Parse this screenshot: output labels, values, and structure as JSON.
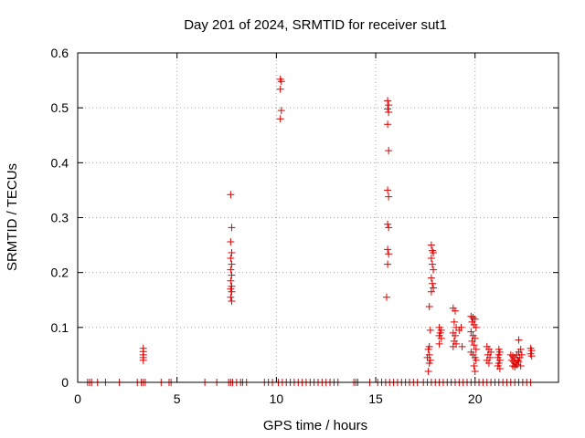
{
  "chart_data": {
    "type": "scatter",
    "title": "Day 201 of 2024, SRMTID for receiver sut1",
    "xlabel": "GPS time / hours",
    "ylabel": "SRMTID / TECUs",
    "xlim": [
      0,
      24.2
    ],
    "ylim": [
      0,
      0.6
    ],
    "xticks": [
      0,
      5,
      10,
      15,
      20
    ],
    "xtick_labels": [
      "0",
      "5",
      "10",
      "15",
      "20"
    ],
    "yticks": [
      0,
      0.1,
      0.2,
      0.3,
      0.4,
      0.5,
      0.6
    ],
    "ytick_labels": [
      "0",
      "0.1",
      "0.2",
      "0.3",
      "0.4",
      "0.5",
      "0.6"
    ],
    "grid": true,
    "marker": "plus",
    "color": "#e00000",
    "series": [
      {
        "name": "sut1",
        "points": [
          [
            0.5,
            0
          ],
          [
            0.6,
            0
          ],
          [
            0.7,
            0
          ],
          [
            1.0,
            0
          ],
          [
            1.4,
            0
          ],
          [
            2.1,
            0
          ],
          [
            3.0,
            0
          ],
          [
            3.2,
            0
          ],
          [
            3.3,
            0
          ],
          [
            3.4,
            0
          ],
          [
            4.2,
            0
          ],
          [
            4.6,
            0
          ],
          [
            4.7,
            0
          ],
          [
            6.4,
            0
          ],
          [
            7.0,
            0
          ],
          [
            7.6,
            0
          ],
          [
            7.7,
            0
          ],
          [
            7.8,
            0
          ],
          [
            8.0,
            0
          ],
          [
            8.2,
            0
          ],
          [
            8.3,
            0
          ],
          [
            8.5,
            0
          ],
          [
            9.4,
            0
          ],
          [
            9.6,
            0
          ],
          [
            9.8,
            0
          ],
          [
            10.1,
            0
          ],
          [
            10.3,
            0
          ],
          [
            10.5,
            0
          ],
          [
            10.7,
            0
          ],
          [
            10.9,
            0
          ],
          [
            11.1,
            0
          ],
          [
            11.3,
            0
          ],
          [
            11.5,
            0
          ],
          [
            11.7,
            0
          ],
          [
            11.9,
            0
          ],
          [
            12.1,
            0
          ],
          [
            12.3,
            0
          ],
          [
            12.5,
            0
          ],
          [
            12.7,
            0
          ],
          [
            12.9,
            0
          ],
          [
            13.1,
            0
          ],
          [
            13.9,
            0
          ],
          [
            14.0,
            0
          ],
          [
            14.1,
            0
          ],
          [
            14.7,
            0
          ],
          [
            15.1,
            0
          ],
          [
            15.3,
            0
          ],
          [
            15.5,
            0
          ],
          [
            15.7,
            0
          ],
          [
            15.9,
            0
          ],
          [
            16.1,
            0
          ],
          [
            16.3,
            0
          ],
          [
            16.5,
            0
          ],
          [
            16.7,
            0
          ],
          [
            16.9,
            0
          ],
          [
            17.1,
            0
          ],
          [
            17.4,
            0
          ],
          [
            17.6,
            0
          ],
          [
            17.8,
            0
          ],
          [
            18.0,
            0
          ],
          [
            18.2,
            0
          ],
          [
            18.4,
            0
          ],
          [
            18.6,
            0
          ],
          [
            18.8,
            0
          ],
          [
            19.0,
            0
          ],
          [
            19.2,
            0
          ],
          [
            19.4,
            0
          ],
          [
            19.6,
            0
          ],
          [
            19.8,
            0
          ],
          [
            20.0,
            0
          ],
          [
            20.2,
            0
          ],
          [
            20.4,
            0
          ],
          [
            20.6,
            0
          ],
          [
            20.8,
            0
          ],
          [
            21.0,
            0
          ],
          [
            21.2,
            0
          ],
          [
            21.4,
            0
          ],
          [
            21.6,
            0
          ],
          [
            21.8,
            0
          ],
          [
            22.0,
            0
          ],
          [
            22.2,
            0
          ],
          [
            22.4,
            0
          ],
          [
            22.6,
            0
          ],
          [
            22.8,
            0
          ],
          [
            3.3,
            0.062
          ],
          [
            3.3,
            0.056
          ],
          [
            3.3,
            0.05
          ],
          [
            3.3,
            0.045
          ],
          [
            3.3,
            0.04
          ],
          [
            7.7,
            0.342
          ],
          [
            7.75,
            0.282
          ],
          [
            7.7,
            0.256
          ],
          [
            7.75,
            0.236
          ],
          [
            7.7,
            0.226
          ],
          [
            7.75,
            0.215
          ],
          [
            7.7,
            0.205
          ],
          [
            7.75,
            0.195
          ],
          [
            7.7,
            0.185
          ],
          [
            7.75,
            0.175
          ],
          [
            7.7,
            0.17
          ],
          [
            7.75,
            0.165
          ],
          [
            7.7,
            0.155
          ],
          [
            7.75,
            0.148
          ],
          [
            10.2,
            0.552
          ],
          [
            10.25,
            0.548
          ],
          [
            10.2,
            0.534
          ],
          [
            10.25,
            0.495
          ],
          [
            10.2,
            0.48
          ],
          [
            15.6,
            0.513
          ],
          [
            15.65,
            0.505
          ],
          [
            15.6,
            0.498
          ],
          [
            15.65,
            0.492
          ],
          [
            15.6,
            0.47
          ],
          [
            15.65,
            0.422
          ],
          [
            15.6,
            0.35
          ],
          [
            15.65,
            0.338
          ],
          [
            15.6,
            0.288
          ],
          [
            15.65,
            0.282
          ],
          [
            15.6,
            0.242
          ],
          [
            15.65,
            0.234
          ],
          [
            15.6,
            0.215
          ],
          [
            15.55,
            0.155
          ],
          [
            17.8,
            0.25
          ],
          [
            17.85,
            0.24
          ],
          [
            17.9,
            0.236
          ],
          [
            17.8,
            0.226
          ],
          [
            17.85,
            0.215
          ],
          [
            17.9,
            0.205
          ],
          [
            17.8,
            0.19
          ],
          [
            17.85,
            0.18
          ],
          [
            17.9,
            0.172
          ],
          [
            17.8,
            0.165
          ],
          [
            17.7,
            0.138
          ],
          [
            17.75,
            0.095
          ],
          [
            17.7,
            0.065
          ],
          [
            17.65,
            0.06
          ],
          [
            17.7,
            0.05
          ],
          [
            17.6,
            0.045
          ],
          [
            17.75,
            0.04
          ],
          [
            17.7,
            0.035
          ],
          [
            17.65,
            0.02
          ],
          [
            18.2,
            0.1
          ],
          [
            18.3,
            0.095
          ],
          [
            18.25,
            0.09
          ],
          [
            18.2,
            0.085
          ],
          [
            18.3,
            0.08
          ],
          [
            18.2,
            0.07
          ],
          [
            18.9,
            0.135
          ],
          [
            19.0,
            0.13
          ],
          [
            18.95,
            0.11
          ],
          [
            19.05,
            0.1
          ],
          [
            18.9,
            0.09
          ],
          [
            19.0,
            0.085
          ],
          [
            18.95,
            0.075
          ],
          [
            19.05,
            0.07
          ],
          [
            18.9,
            0.065
          ],
          [
            19.3,
            0.1
          ],
          [
            19.2,
            0.095
          ],
          [
            19.35,
            0.065
          ],
          [
            19.8,
            0.12
          ],
          [
            19.9,
            0.118
          ],
          [
            20.0,
            0.115
          ],
          [
            19.85,
            0.11
          ],
          [
            19.95,
            0.105
          ],
          [
            20.05,
            0.1
          ],
          [
            19.8,
            0.092
          ],
          [
            19.9,
            0.085
          ],
          [
            20.0,
            0.08
          ],
          [
            19.85,
            0.075
          ],
          [
            19.95,
            0.068
          ],
          [
            20.05,
            0.06
          ],
          [
            19.8,
            0.055
          ],
          [
            19.9,
            0.05
          ],
          [
            20.0,
            0.045
          ],
          [
            20.05,
            0.04
          ],
          [
            19.95,
            0.03
          ],
          [
            20.0,
            0.02
          ],
          [
            20.6,
            0.065
          ],
          [
            20.7,
            0.06
          ],
          [
            20.8,
            0.055
          ],
          [
            20.65,
            0.05
          ],
          [
            20.75,
            0.045
          ],
          [
            20.6,
            0.04
          ],
          [
            20.7,
            0.035
          ],
          [
            21.2,
            0.06
          ],
          [
            21.25,
            0.055
          ],
          [
            21.2,
            0.05
          ],
          [
            21.15,
            0.045
          ],
          [
            21.25,
            0.04
          ],
          [
            21.2,
            0.035
          ],
          [
            21.15,
            0.03
          ],
          [
            21.25,
            0.025
          ],
          [
            21.8,
            0.05
          ],
          [
            21.9,
            0.048
          ],
          [
            22.0,
            0.045
          ],
          [
            22.1,
            0.05
          ],
          [
            22.2,
            0.055
          ],
          [
            22.3,
            0.06
          ],
          [
            21.85,
            0.04
          ],
          [
            21.95,
            0.038
          ],
          [
            22.05,
            0.035
          ],
          [
            22.15,
            0.04
          ],
          [
            22.25,
            0.045
          ],
          [
            22.35,
            0.05
          ],
          [
            21.9,
            0.03
          ],
          [
            22.0,
            0.028
          ],
          [
            22.1,
            0.032
          ],
          [
            22.2,
            0.038
          ],
          [
            22.3,
            0.03
          ],
          [
            22.2,
            0.077
          ],
          [
            22.8,
            0.062
          ],
          [
            22.85,
            0.058
          ],
          [
            22.8,
            0.052
          ],
          [
            22.85,
            0.048
          ]
        ]
      }
    ]
  }
}
